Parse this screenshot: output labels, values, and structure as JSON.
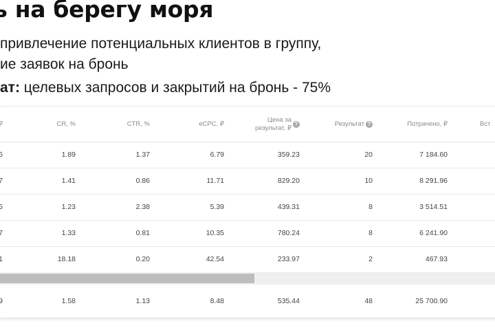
{
  "heading": {
    "title": "ь на берегу моря",
    "line1": "привлечение потенциальных клиентов в группу,",
    "line2": "ие заявок на бронь",
    "line3_label": "ат:",
    "line3_text": " целевых запросов и закрытий на бронь - 75%"
  },
  "table": {
    "headers": {
      "c0": "₽",
      "cr": "CR, %",
      "ctr": "CTR, %",
      "ecpc": "eCPC, ₽",
      "price_line1": "Цена за",
      "price_line2": "результат, ₽",
      "result": "Результат",
      "spent": "Потрачено, ₽",
      "last": "Вст"
    },
    "help_icon": "?",
    "rows": [
      {
        "c0": "6",
        "cr": "1.89",
        "ctr": "1.37",
        "ecpc": "6.79",
        "price": "359.23",
        "result": "20",
        "spent": "7 184.60"
      },
      {
        "c0": "7",
        "cr": "1.41",
        "ctr": "0.86",
        "ecpc": "11.71",
        "price": "829.20",
        "result": "10",
        "spent": "8 291.96"
      },
      {
        "c0": "5",
        "cr": "1.23",
        "ctr": "2.38",
        "ecpc": "5.39",
        "price": "439.31",
        "result": "8",
        "spent": "3 514.51"
      },
      {
        "c0": "7",
        "cr": "1.33",
        "ctr": "0.81",
        "ecpc": "10.35",
        "price": "780.24",
        "result": "8",
        "spent": "6 241.90"
      },
      {
        "c0": "1",
        "cr": "18.18",
        "ctr": "0.20",
        "ecpc": "42.54",
        "price": "233.97",
        "result": "2",
        "spent": "467.93"
      }
    ],
    "total": {
      "c0": "9",
      "cr": "1.58",
      "ctr": "1.13",
      "ecpc": "8.48",
      "price": "535.44",
      "result": "48",
      "spent": "25 700.90"
    },
    "scroll_position": 0.51
  },
  "colors": {
    "header_text": "#8a8a8a",
    "cell_text": "#444444",
    "scroll_thumb": "#bdbdbd"
  }
}
